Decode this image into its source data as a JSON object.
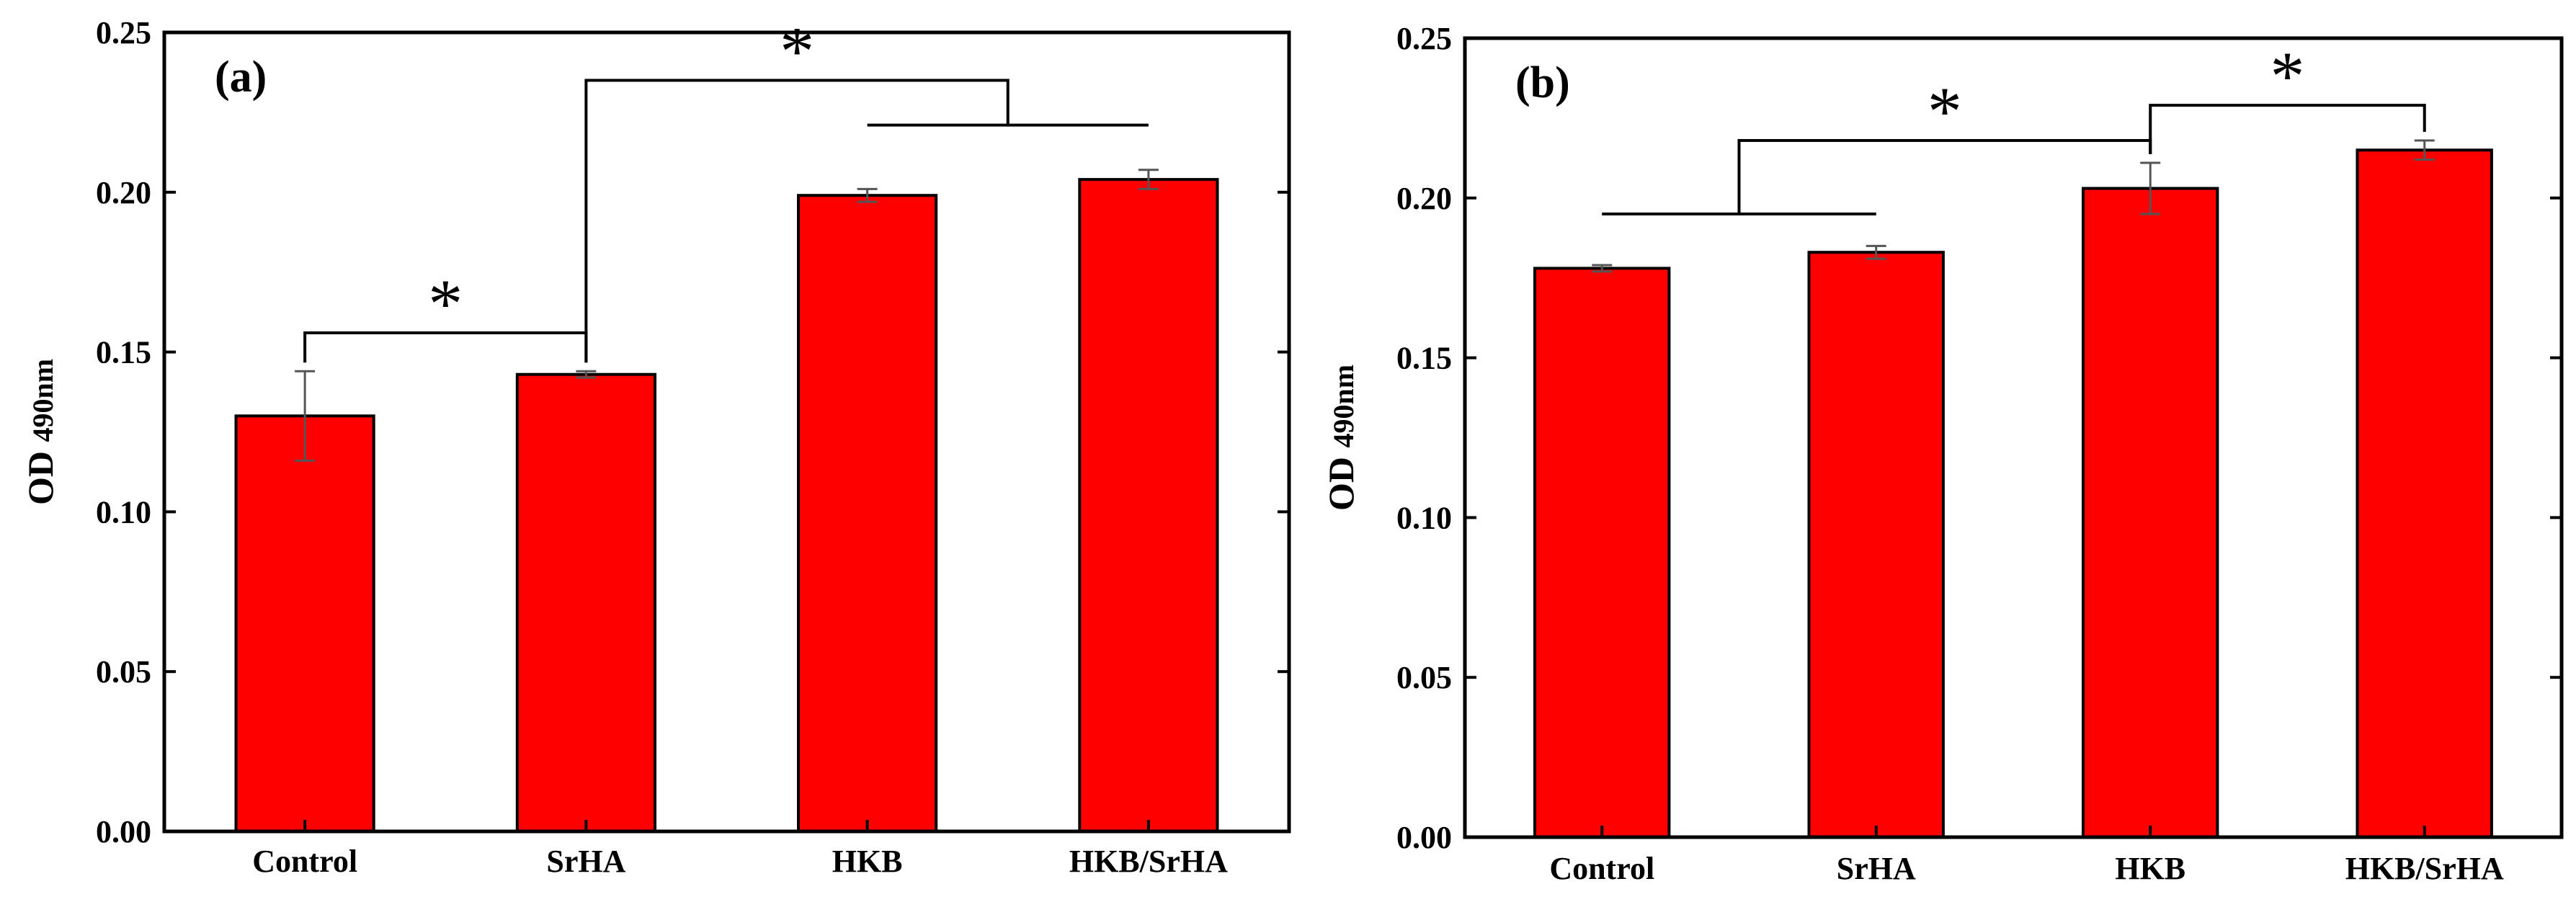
{
  "colors": {
    "bar": "#ff0000",
    "axis": "#000000",
    "error": "#555555"
  },
  "chart_data": [
    {
      "type": "bar",
      "panel_label": "(a)",
      "ylabel_main": "OD",
      "ylabel_sub": "490nm",
      "xlabel": "",
      "ylim": [
        0,
        0.25
      ],
      "yticks": [
        0.0,
        0.05,
        0.1,
        0.15,
        0.2,
        0.25
      ],
      "ytick_labels": [
        "0.00",
        "0.05",
        "0.10",
        "0.15",
        "0.20",
        "0.25"
      ],
      "categories": [
        "Control",
        "SrHA",
        "HKB",
        "HKB/SrHA"
      ],
      "values": [
        0.13,
        0.143,
        0.199,
        0.204
      ],
      "errors": [
        0.014,
        0.001,
        0.002,
        0.003
      ],
      "significance": [
        {
          "type": "simple",
          "from": 0,
          "to": 1,
          "y": 0.156,
          "label": "*"
        },
        {
          "type": "nested",
          "left_from": 1,
          "left_to": 1,
          "left_y": 0.237,
          "right_from": 2,
          "right_to": 3,
          "right_y": 0.221,
          "y": 0.235,
          "label": "*"
        }
      ]
    },
    {
      "type": "bar",
      "panel_label": "(b)",
      "ylabel_main": "OD",
      "ylabel_sub": "490nm",
      "xlabel": "",
      "ylim": [
        0,
        0.25
      ],
      "yticks": [
        0.0,
        0.05,
        0.1,
        0.15,
        0.2,
        0.25
      ],
      "ytick_labels": [
        "0.00",
        "0.05",
        "0.10",
        "0.15",
        "0.20",
        "0.25"
      ],
      "categories": [
        "Control",
        "SrHA",
        "HKB",
        "HKB/SrHA"
      ],
      "values": [
        0.178,
        0.183,
        0.203,
        0.215
      ],
      "errors": [
        0.001,
        0.002,
        0.008,
        0.003
      ],
      "significance": [
        {
          "type": "nested",
          "left_from": 0,
          "left_to": 1,
          "left_y": 0.195,
          "right_from": 2,
          "right_to": 2,
          "right_y": 0.211,
          "y": 0.218,
          "label": "*"
        },
        {
          "type": "simple",
          "from": 2,
          "to": 3,
          "y": 0.229,
          "label": "*"
        }
      ]
    }
  ]
}
